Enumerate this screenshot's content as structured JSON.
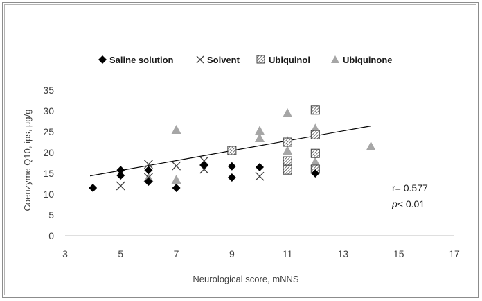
{
  "chart_data": {
    "type": "scatter",
    "xlabel": "Neurological score, mNNS",
    "ylabel": "Coenzyme Q10, ips, µg/g",
    "xlim": [
      3,
      17
    ],
    "ylim": [
      0,
      35
    ],
    "x_ticks": [
      "3",
      "5",
      "7",
      "9",
      "11",
      "13",
      "15",
      "17"
    ],
    "y_ticks": [
      "0",
      "5",
      "10",
      "15",
      "20",
      "25",
      "30",
      "35"
    ],
    "legend_position": "top",
    "grid": false,
    "series": [
      {
        "name": "Saline solution",
        "marker": "diamond",
        "color": "#000000",
        "points": [
          [
            4,
            11.5
          ],
          [
            5,
            14.5
          ],
          [
            5,
            15.8
          ],
          [
            6,
            13
          ],
          [
            6,
            15.8
          ],
          [
            7,
            11.5
          ],
          [
            8,
            17
          ],
          [
            9,
            14
          ],
          [
            9,
            16.7
          ],
          [
            10,
            16.5
          ],
          [
            12,
            15
          ]
        ]
      },
      {
        "name": "Solvent",
        "marker": "x",
        "color": "#404040",
        "points": [
          [
            5,
            12
          ],
          [
            6,
            14
          ],
          [
            6,
            17.2
          ],
          [
            7,
            16.8
          ],
          [
            8,
            16
          ],
          [
            8,
            18
          ],
          [
            10,
            14.3
          ]
        ]
      },
      {
        "name": "Ubiquinol",
        "marker": "hatched-square",
        "color": "#404040",
        "points": [
          [
            9,
            20.5
          ],
          [
            11,
            15.8
          ],
          [
            11,
            18
          ],
          [
            11,
            22.5
          ],
          [
            12,
            16
          ],
          [
            12,
            19.8
          ],
          [
            12,
            24.3
          ],
          [
            12,
            30.2
          ]
        ]
      },
      {
        "name": "Ubiquinone",
        "marker": "triangle",
        "color": "#a6a6a6",
        "points": [
          [
            6,
            14
          ],
          [
            7,
            13.5
          ],
          [
            7,
            25.5
          ],
          [
            10,
            23.5
          ],
          [
            10,
            25.3
          ],
          [
            11,
            20.5
          ],
          [
            11,
            22.8
          ],
          [
            11,
            29.5
          ],
          [
            12,
            17.8
          ],
          [
            12,
            25.8
          ],
          [
            14,
            21.5
          ]
        ]
      }
    ],
    "trendline": {
      "x": [
        3.9,
        14
      ],
      "y": [
        14.4,
        26.4
      ]
    },
    "annotation": {
      "r_text": "r= 0.577",
      "p_italic": "p",
      "p_rest": "< 0.01"
    }
  }
}
